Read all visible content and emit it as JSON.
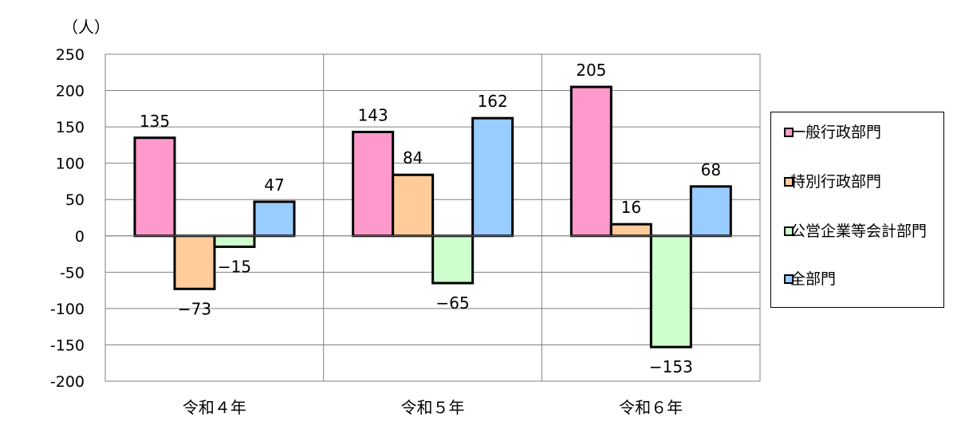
{
  "chart_data": {
    "type": "bar",
    "unit_label": "（人）",
    "categories": [
      "令和４年",
      "令和５年",
      "令和６年"
    ],
    "series": [
      {
        "name": "一般行政部門",
        "values": [
          135,
          143,
          205
        ],
        "color": "#ff99cc"
      },
      {
        "name": "特別行政部門",
        "values": [
          -73,
          84,
          16
        ],
        "color": "#ffcc99"
      },
      {
        "name": "公営企業等会計部門",
        "values": [
          -15,
          -65,
          -153
        ],
        "color": "#ccffcc"
      },
      {
        "name": "全部門",
        "values": [
          47,
          162,
          68
        ],
        "color": "#99ccff"
      }
    ],
    "value_labels": [
      [
        "135",
        "143",
        "205"
      ],
      [
        "−73",
        "84",
        "16"
      ],
      [
        "−15",
        "−65",
        "−153"
      ],
      [
        "47",
        "162",
        "68"
      ]
    ],
    "yticks": [
      "250",
      "200",
      "150",
      "100",
      "50",
      "0",
      "-50",
      "-100",
      "-150",
      "-200"
    ],
    "ylim": [
      -200,
      250
    ],
    "grid": true,
    "legend": "right"
  }
}
